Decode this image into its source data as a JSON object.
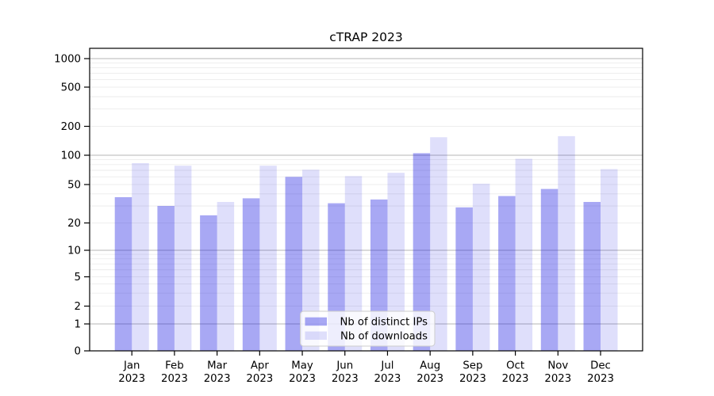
{
  "chart_data": {
    "type": "bar",
    "title": "cTRAP 2023",
    "year": "2023",
    "categories": [
      "Jan",
      "Feb",
      "Mar",
      "Apr",
      "May",
      "Jun",
      "Jul",
      "Aug",
      "Sep",
      "Oct",
      "Nov",
      "Dec"
    ],
    "series": [
      {
        "name": "Nb of distinct IPs",
        "values": [
          37,
          30,
          24,
          36,
          60,
          32,
          35,
          105,
          29,
          38,
          45,
          33
        ],
        "color": "rgba(25,25,225,0.38)"
      },
      {
        "name": "Nb of downloads",
        "values": [
          83,
          78,
          33,
          78,
          71,
          61,
          66,
          154,
          51,
          92,
          158,
          72
        ],
        "color": "rgba(25,25,225,0.14)"
      }
    ],
    "y_ticks": [
      0,
      1,
      2,
      5,
      10,
      20,
      50,
      100,
      200,
      500,
      1000
    ],
    "yscale": "symlog",
    "ylim": [
      0,
      1280
    ],
    "grid": true,
    "legend_position": "lower center",
    "legend_background": "rgba(255,255,255,0.8)",
    "legend_border_color": "#cccccc",
    "major_grid_color": "#b5b5b5",
    "minor_grid_color": "#e9e9e9",
    "axis_color": "#000000"
  }
}
